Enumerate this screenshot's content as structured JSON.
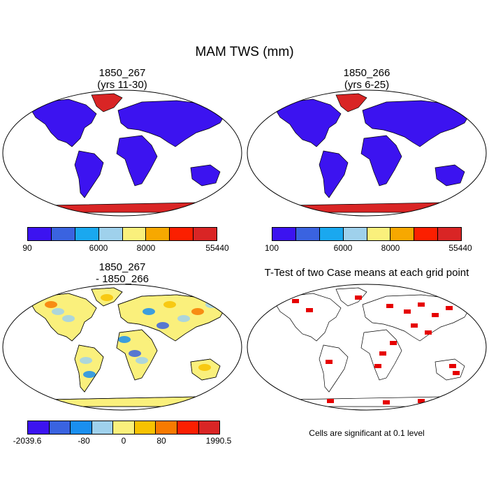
{
  "figure": {
    "title": "MAM TWS (mm)"
  },
  "panels": {
    "top_left": {
      "title": "1850_267\n(yrs 11-30)"
    },
    "top_right": {
      "title": "1850_266\n(yrs 6-25)"
    },
    "bottom_left": {
      "title": "1850_267\n- 1850_266"
    },
    "bottom_right": {
      "title": "T-Test of two Case means at each grid point"
    }
  },
  "colorbars": {
    "top_left": {
      "colors": [
        "#3c13f0",
        "#3a63e0",
        "#1aa8ef",
        "#9fd1ec",
        "#faf07c",
        "#f7a800",
        "#fb1f00",
        "#d92525"
      ],
      "ticks": [
        "90",
        "6000",
        "8000",
        "55440"
      ]
    },
    "top_right": {
      "colors": [
        "#3c13f0",
        "#3a63e0",
        "#1aa8ef",
        "#9fd1ec",
        "#faf07c",
        "#f7a800",
        "#fb1f00",
        "#d92525"
      ],
      "ticks": [
        "100",
        "6000",
        "8000",
        "55440"
      ]
    },
    "bottom_left": {
      "colors": [
        "#3c13f0",
        "#3a63e0",
        "#1a8fef",
        "#9fd1ec",
        "#faf07c",
        "#f7c200",
        "#f77a00",
        "#fb1f00",
        "#d92525"
      ],
      "ticks": [
        "-2039.6",
        "-80",
        "0",
        "80",
        "1990.5"
      ]
    }
  },
  "significance_note": "Cells are significant at 0.1 level",
  "map_colors": {
    "land_low": "#3c13f0",
    "ice_high": "#d92525",
    "diff_base": "#faf07c",
    "signif": "#e60000"
  }
}
